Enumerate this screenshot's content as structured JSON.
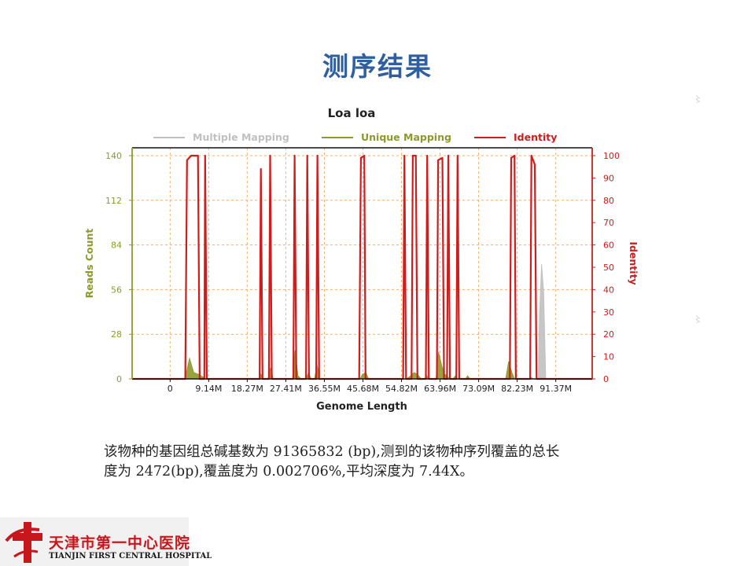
{
  "slide": {
    "title": "测序结果",
    "caption_lines": [
      "该物种的基因组总碱基数为 91365832 (bp),测到的该物种序列覆盖的总长",
      "度为 2472(bp),覆盖度为 0.002706%,平均深度为 7.44X。"
    ]
  },
  "logo": {
    "name_cn": "天津市第一中心医院",
    "name_en": "TIANJIN FIRST CENTRAL HOSPITAL"
  },
  "chart_data": {
    "type": "area",
    "title": "Loa loa",
    "xlabel": "Genome Length",
    "ylabel": "Reads Count",
    "y2label": "Identity",
    "xlim": [
      -9.0,
      100.0
    ],
    "ylim": [
      0,
      140
    ],
    "y2lim": [
      0,
      100
    ],
    "x_ticks": [
      "0",
      "9.14M",
      "18.27M",
      "27.41M",
      "36.55M",
      "45.68M",
      "54.82M",
      "63.96M",
      "73.09M",
      "82.23M",
      "91.37M"
    ],
    "x_tick_values": [
      0,
      9.14,
      18.27,
      27.41,
      36.55,
      45.68,
      54.82,
      63.96,
      73.09,
      82.23,
      91.37
    ],
    "y_ticks": [
      0,
      28,
      56,
      84,
      112,
      140
    ],
    "y2_ticks": [
      0,
      10,
      20,
      30,
      40,
      50,
      60,
      70,
      80,
      90,
      100
    ],
    "grid": true,
    "legend_position": "top",
    "colors": {
      "multiple": "#c0c0c0",
      "unique": "#8c9a2a",
      "identity": "#d21b1b",
      "grid": "#f0b070",
      "title": "#222222"
    },
    "legend": [
      "Multiple Mapping",
      "Unique Mapping",
      "Identity"
    ],
    "series": [
      {
        "name": "Multiple Mapping",
        "points": [
          [
            87.2,
            0
          ],
          [
            87.5,
            40
          ],
          [
            88.0,
            72
          ],
          [
            88.5,
            55
          ],
          [
            89.0,
            0
          ]
        ]
      },
      {
        "name": "Unique Mapping",
        "points": [
          [
            3.5,
            0
          ],
          [
            4.6,
            13
          ],
          [
            5.6,
            4
          ],
          [
            6.6,
            3
          ],
          [
            7.3,
            2
          ],
          [
            8.5,
            0
          ],
          [
            21.0,
            0
          ],
          [
            21.5,
            3
          ],
          [
            22.0,
            0
          ],
          [
            23.2,
            0
          ],
          [
            23.8,
            7
          ],
          [
            24.4,
            0
          ],
          [
            29.0,
            0
          ],
          [
            29.6,
            18
          ],
          [
            30.3,
            2
          ],
          [
            31.0,
            0
          ],
          [
            32.2,
            0
          ],
          [
            32.8,
            4
          ],
          [
            33.4,
            0
          ],
          [
            34.2,
            0
          ],
          [
            34.8,
            9
          ],
          [
            35.4,
            0
          ],
          [
            45.0,
            0
          ],
          [
            45.6,
            3
          ],
          [
            46.4,
            4
          ],
          [
            47.0,
            0
          ],
          [
            56.0,
            0
          ],
          [
            57.0,
            2
          ],
          [
            57.8,
            4
          ],
          [
            58.6,
            3
          ],
          [
            59.5,
            0
          ],
          [
            60.2,
            0
          ],
          [
            60.8,
            2
          ],
          [
            61.4,
            0
          ],
          [
            63.0,
            0
          ],
          [
            63.6,
            17
          ],
          [
            64.4,
            8
          ],
          [
            65.0,
            3
          ],
          [
            65.6,
            2
          ],
          [
            66.2,
            0
          ],
          [
            67.0,
            0
          ],
          [
            67.6,
            2
          ],
          [
            68.2,
            0
          ],
          [
            70.0,
            0
          ],
          [
            70.5,
            2
          ],
          [
            71.0,
            0
          ],
          [
            79.5,
            0
          ],
          [
            80.2,
            11
          ],
          [
            81.0,
            4
          ],
          [
            81.6,
            0
          ],
          [
            85.0,
            0
          ],
          [
            85.5,
            1
          ],
          [
            86.0,
            0
          ]
        ]
      },
      {
        "name": "Identity",
        "points": [
          [
            -9,
            0
          ],
          [
            3.6,
            0
          ],
          [
            4.0,
            98
          ],
          [
            5.0,
            100
          ],
          [
            6.6,
            100
          ],
          [
            7.0,
            0
          ],
          [
            8.1,
            0
          ],
          [
            8.3,
            100
          ],
          [
            8.7,
            0
          ],
          [
            21.2,
            0
          ],
          [
            21.5,
            94
          ],
          [
            21.9,
            0
          ],
          [
            23.4,
            0
          ],
          [
            23.7,
            100
          ],
          [
            24.1,
            0
          ],
          [
            29.2,
            0
          ],
          [
            29.5,
            100
          ],
          [
            29.9,
            0
          ],
          [
            32.2,
            0
          ],
          [
            32.5,
            100
          ],
          [
            32.9,
            0
          ],
          [
            34.6,
            0
          ],
          [
            34.9,
            100
          ],
          [
            35.3,
            0
          ],
          [
            44.8,
            0
          ],
          [
            45.2,
            99
          ],
          [
            46.0,
            100
          ],
          [
            46.3,
            0
          ],
          [
            55.2,
            0
          ],
          [
            55.5,
            100
          ],
          [
            55.9,
            0
          ],
          [
            57.2,
            0
          ],
          [
            57.5,
            100
          ],
          [
            58.2,
            100
          ],
          [
            58.6,
            0
          ],
          [
            60.6,
            0
          ],
          [
            60.9,
            100
          ],
          [
            61.3,
            0
          ],
          [
            63.2,
            0
          ],
          [
            63.5,
            98
          ],
          [
            64.5,
            99
          ],
          [
            64.9,
            0
          ],
          [
            65.6,
            0
          ],
          [
            65.9,
            100
          ],
          [
            66.3,
            0
          ],
          [
            67.8,
            0
          ],
          [
            68.1,
            100
          ],
          [
            68.5,
            0
          ],
          [
            80.5,
            0
          ],
          [
            80.8,
            99
          ],
          [
            81.6,
            100
          ],
          [
            81.9,
            0
          ],
          [
            85.3,
            0
          ],
          [
            85.6,
            100
          ],
          [
            86.4,
            96
          ],
          [
            86.8,
            0
          ],
          [
            100,
            0
          ]
        ]
      }
    ]
  }
}
